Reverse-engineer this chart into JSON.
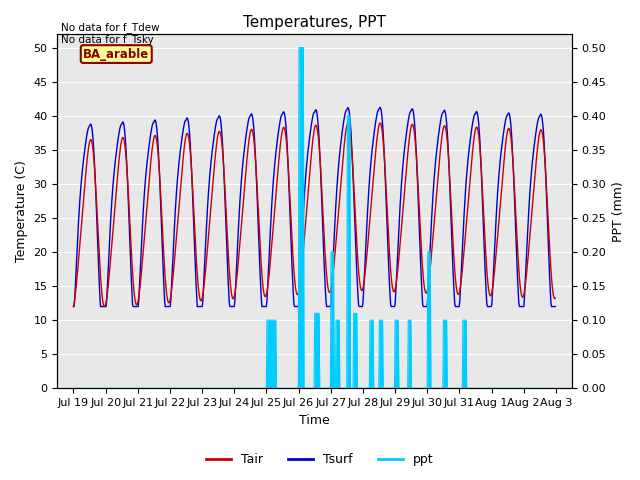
{
  "title": "Temperatures, PPT",
  "xlabel": "Time",
  "ylabel_left": "Temperature (C)",
  "ylabel_right": "PPT (mm)",
  "annotation_text": "No data for f_Tdew\nNo data for f_Tsky",
  "box_label": "BA_arable",
  "xlim_days": [
    18.5,
    34.5
  ],
  "ylim_left": [
    0,
    52
  ],
  "ylim_right": [
    0,
    0.52
  ],
  "yticks_left": [
    0,
    5,
    10,
    15,
    20,
    25,
    30,
    35,
    40,
    45,
    50
  ],
  "yticks_right": [
    0.0,
    0.05,
    0.1,
    0.15,
    0.2,
    0.25,
    0.3,
    0.35,
    0.4,
    0.45,
    0.5
  ],
  "xtick_labels": [
    "Jul 19",
    "Jul 20",
    "Jul 21",
    "Jul 22",
    "Jul 23",
    "Jul 24",
    "Jul 25",
    "Jul 26",
    "Jul 27",
    "Jul 28",
    "Jul 29",
    "Jul 30",
    "Jul 31",
    "Aug 1",
    "Aug 2",
    "Aug 3"
  ],
  "xtick_positions": [
    19,
    20,
    21,
    22,
    23,
    24,
    25,
    26,
    27,
    28,
    29,
    30,
    31,
    32,
    33,
    34
  ],
  "color_tair": "#cc0000",
  "color_tsurf": "#0000cc",
  "color_ppt": "#00ccff",
  "background_color": "#e8e8e8",
  "grid_color": "#ffffff",
  "figsize": [
    6.4,
    4.8
  ],
  "dpi": 100,
  "title_fontsize": 11,
  "label_fontsize": 9,
  "tick_fontsize": 8
}
